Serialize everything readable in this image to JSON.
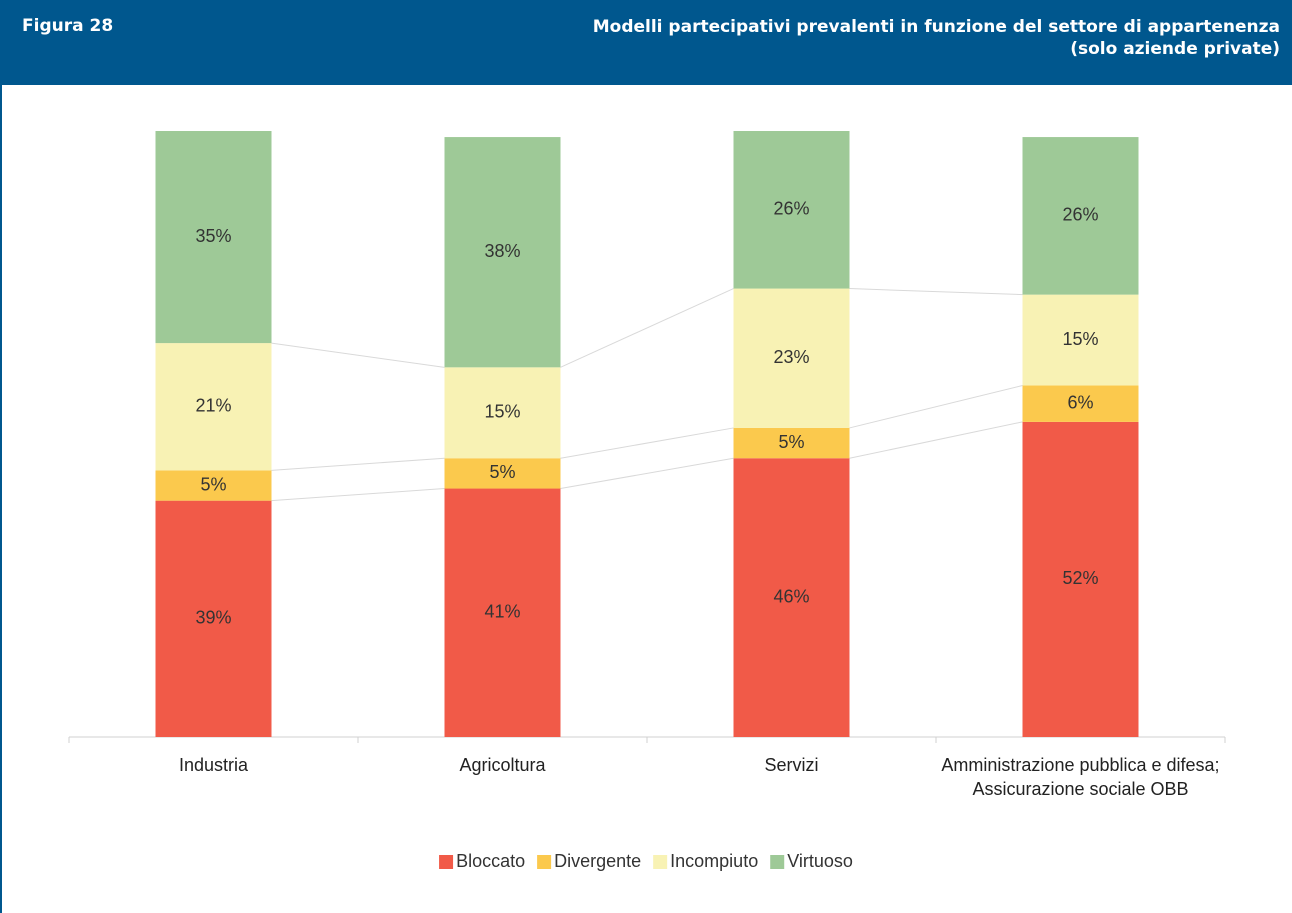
{
  "figure_label": "Figura 28",
  "chart_data": {
    "type": "stacked_bar",
    "title": "Modelli partecipativi prevalenti in funzione del settore di appartenenza",
    "subtitle": "(solo aziende private)",
    "categories": [
      "Industria",
      "Agricoltura",
      "Servizi",
      "Amministrazione pubblica e difesa; Assicurazione sociale OBB"
    ],
    "ylim": [
      0,
      100
    ],
    "series": [
      {
        "name": "Bloccato",
        "color": "#f15a48",
        "values": [
          39,
          41,
          46,
          52
        ],
        "value_labels": [
          "39%",
          "41%",
          "46%",
          "52%"
        ]
      },
      {
        "name": "Divergente",
        "color": "#fbc94d",
        "values": [
          5,
          5,
          5,
          6
        ],
        "value_labels": [
          "5%",
          "5%",
          "5%",
          "6%"
        ]
      },
      {
        "name": "Incompiuto",
        "color": "#f8f2b4",
        "values": [
          21,
          15,
          23,
          15
        ],
        "value_labels": [
          "21%",
          "15%",
          "23%",
          "15%"
        ]
      },
      {
        "name": "Virtuoso",
        "color": "#9ec997",
        "values": [
          35,
          38,
          26,
          26
        ],
        "value_labels": [
          "35%",
          "38%",
          "26%",
          "26%"
        ]
      }
    ],
    "legend": "bottom"
  }
}
